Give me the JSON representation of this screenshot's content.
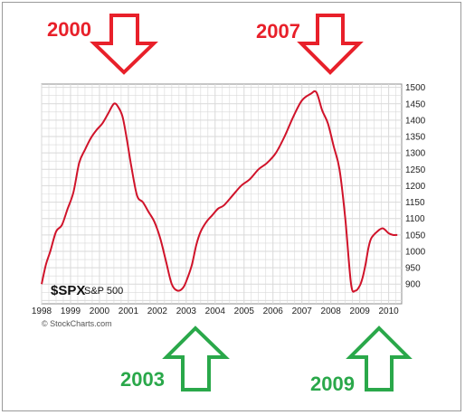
{
  "annotations": {
    "peak1": "2000",
    "peak2": "2007",
    "trough1": "2003",
    "trough2": "2009"
  },
  "colors": {
    "line": "#d0132a",
    "arrow_down": "#e8202a",
    "arrow_up": "#2aa84a",
    "grid": "#d9d9d9",
    "plot_bg": "#ffffff"
  },
  "arrow_icons": [
    "arrow-down-icon",
    "arrow-down-icon",
    "arrow-up-icon",
    "arrow-up-icon"
  ],
  "credit": "© StockCharts.com",
  "chart_data": {
    "type": "line",
    "symbol": "$SPX",
    "symbol_name": "S&P 500",
    "xlim": [
      1998.0,
      2010.45
    ],
    "ylim": [
      840,
      1510
    ],
    "x_ticks": [
      "1998",
      "1999",
      "2000",
      "2001",
      "2002",
      "2003",
      "2004",
      "2005",
      "2006",
      "2007",
      "2008",
      "2009",
      "2010"
    ],
    "y_ticks": [
      "900",
      "950",
      "1000",
      "1050",
      "1100",
      "1150",
      "1200",
      "1250",
      "1300",
      "1350",
      "1400",
      "1450",
      "1500"
    ],
    "grid": true,
    "series": [
      {
        "x": [
          1998.0,
          1998.15,
          1998.3,
          1998.5,
          1998.7,
          1998.9,
          1999.1,
          1999.3,
          1999.5,
          1999.7,
          1999.9,
          2000.1,
          2000.3,
          2000.5,
          2000.65,
          2000.8,
          2000.95,
          2001.1,
          2001.3,
          2001.5,
          2001.7,
          2001.9,
          2002.1,
          2002.3,
          2002.5,
          2002.7,
          2002.9,
          2003.05,
          2003.2,
          2003.35,
          2003.5,
          2003.7,
          2003.9,
          2004.1,
          2004.3,
          2004.6,
          2004.9,
          2005.2,
          2005.5,
          2005.8,
          2006.1,
          2006.4,
          2006.7,
          2007.0,
          2007.3,
          2007.5,
          2007.7,
          2007.9,
          2008.1,
          2008.3,
          2008.5,
          2008.7,
          2008.85,
          2009.0,
          2009.1,
          2009.2,
          2009.3,
          2009.4,
          2009.6,
          2009.8,
          2010.0,
          2010.15,
          2010.3
        ],
        "y": [
          900,
          960,
          1000,
          1060,
          1080,
          1130,
          1180,
          1270,
          1310,
          1345,
          1370,
          1390,
          1420,
          1450,
          1440,
          1410,
          1340,
          1260,
          1170,
          1150,
          1120,
          1090,
          1040,
          970,
          900,
          880,
          890,
          920,
          960,
          1020,
          1060,
          1090,
          1110,
          1130,
          1140,
          1170,
          1200,
          1220,
          1250,
          1270,
          1300,
          1350,
          1410,
          1460,
          1480,
          1485,
          1430,
          1390,
          1320,
          1250,
          1100,
          900,
          880,
          895,
          920,
          960,
          1010,
          1040,
          1060,
          1070,
          1055,
          1050,
          1050
        ]
      }
    ]
  }
}
